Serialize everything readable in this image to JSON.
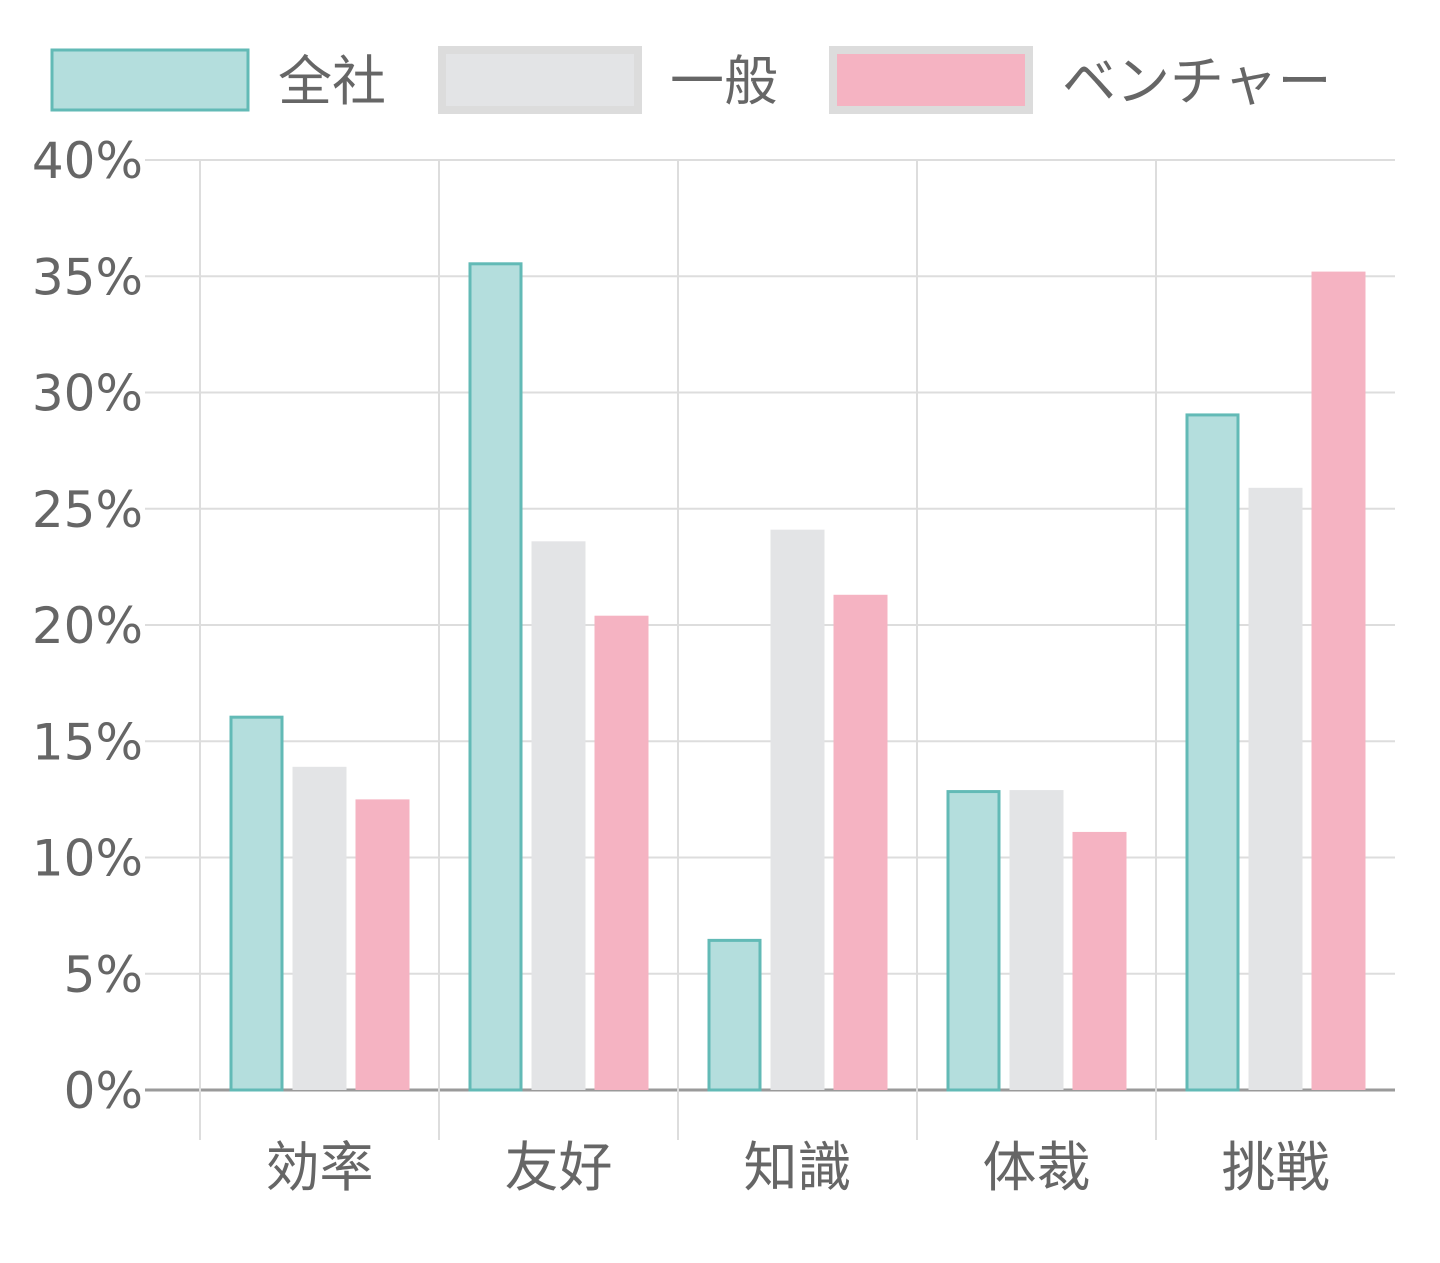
{
  "chart_data": {
    "type": "bar",
    "title": "",
    "xlabel": "",
    "ylabel": "",
    "categories": [
      "効率",
      "友好",
      "知識",
      "体裁",
      "挑戦"
    ],
    "series": [
      {
        "name": "全社",
        "values": [
          16.1,
          35.6,
          6.5,
          12.9,
          29.1
        ],
        "fill": "#b4dedd",
        "stroke": "#62bab6"
      },
      {
        "name": "一般",
        "values": [
          13.9,
          23.6,
          24.1,
          12.9,
          25.9
        ],
        "fill": "#e3e4e6",
        "stroke": "#e3e4e6"
      },
      {
        "name": "ベンチャー",
        "values": [
          12.5,
          20.4,
          21.3,
          11.1,
          35.2
        ],
        "fill": "#f5b3c2",
        "stroke": "#f5b3c2"
      }
    ],
    "ylim": [
      0,
      40
    ],
    "yticks": [
      0,
      5,
      10,
      15,
      20,
      25,
      30,
      35,
      40
    ],
    "ytick_labels": [
      "0%",
      "5%",
      "10%",
      "15%",
      "20%",
      "25%",
      "30%",
      "35%",
      "40%"
    ],
    "grid": true,
    "legend": "top-left"
  }
}
